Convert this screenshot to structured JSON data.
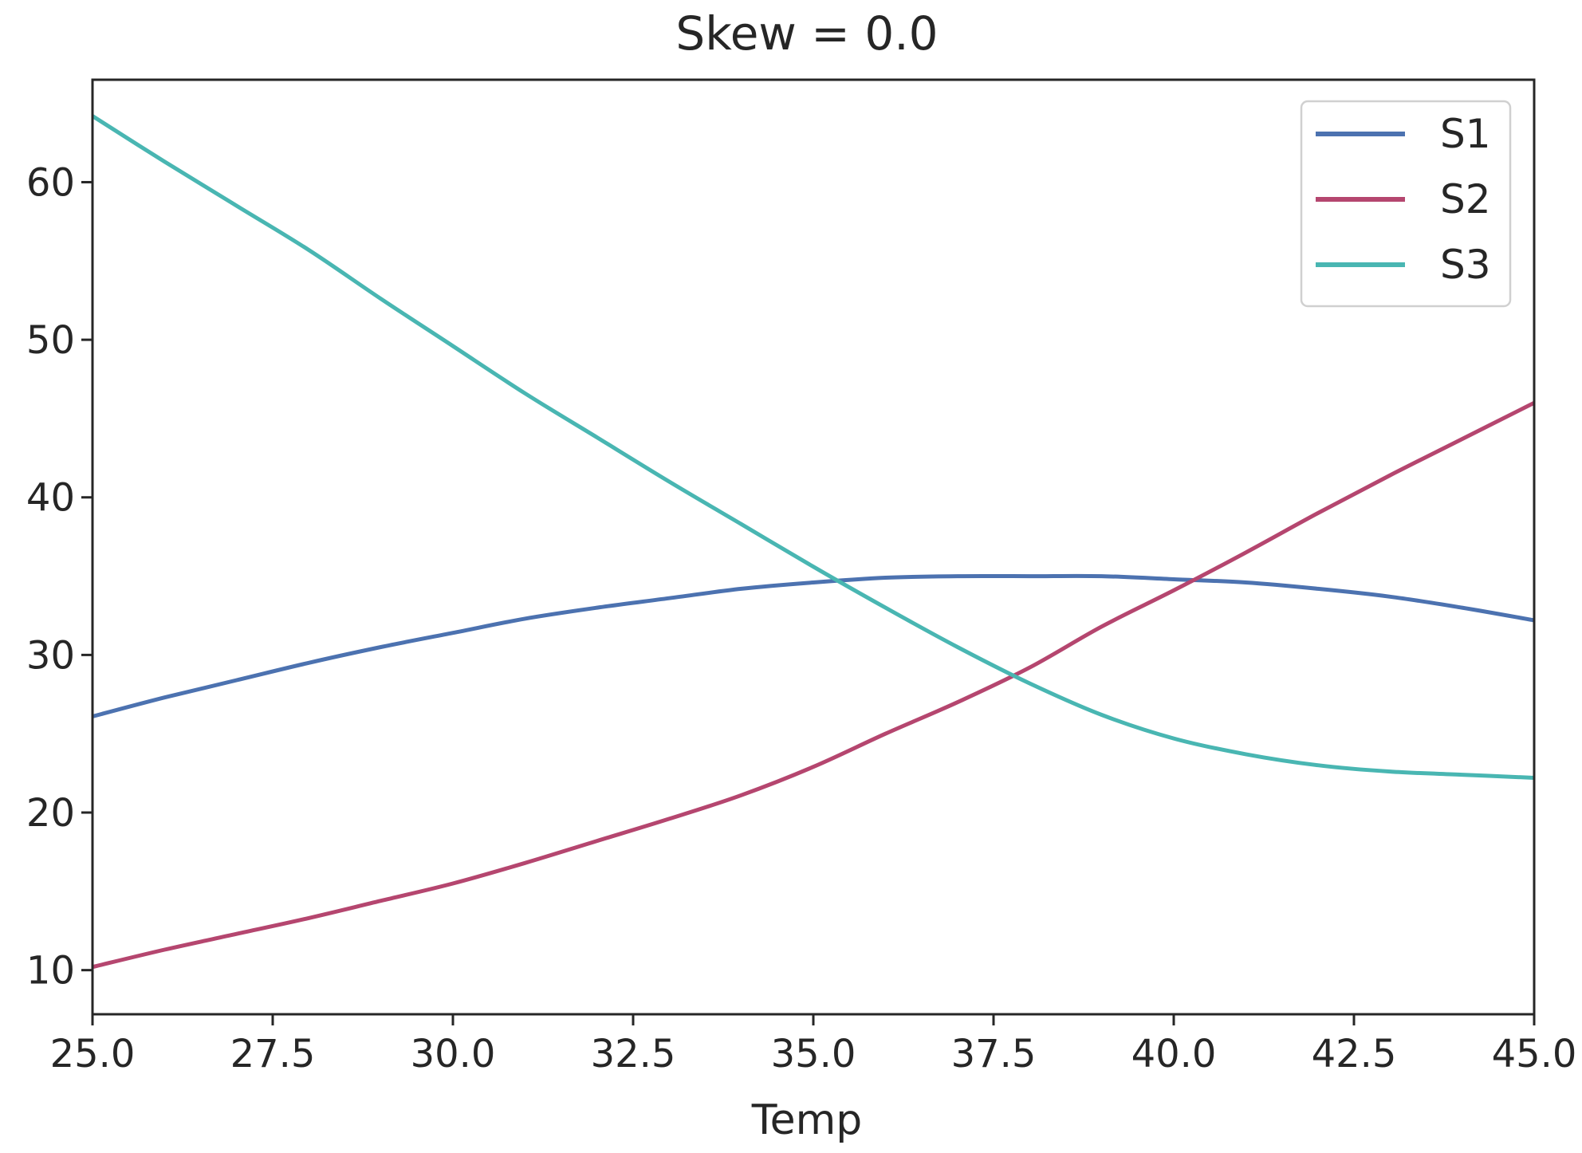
{
  "chart_data": {
    "type": "line",
    "title": "Skew = 0.0",
    "xlabel": "Temp",
    "ylabel": "",
    "xlim": [
      25.0,
      45.0
    ],
    "ylim": [
      7.2,
      66.5
    ],
    "grid": false,
    "legend_position": "top-right",
    "x_ticks": [
      "25.0",
      "27.5",
      "30.0",
      "32.5",
      "35.0",
      "37.5",
      "40.0",
      "42.5",
      "45.0"
    ],
    "y_ticks": [
      "10",
      "20",
      "30",
      "40",
      "50",
      "60"
    ],
    "x": [
      25.0,
      26.0,
      27.0,
      28.0,
      29.0,
      30.0,
      31.0,
      32.0,
      33.0,
      34.0,
      35.0,
      36.0,
      37.0,
      38.0,
      39.0,
      40.0,
      41.0,
      42.0,
      43.0,
      44.0,
      45.0
    ],
    "series": [
      {
        "name": "S1",
        "color": "#4c72b0",
        "values": [
          26.1,
          27.3,
          28.4,
          29.5,
          30.5,
          31.4,
          32.3,
          33.0,
          33.6,
          34.2,
          34.6,
          34.9,
          35.0,
          35.0,
          35.0,
          34.8,
          34.6,
          34.2,
          33.7,
          33.0,
          32.2
        ]
      },
      {
        "name": "S2",
        "color": "#b5466f",
        "values": [
          10.2,
          11.3,
          12.3,
          13.3,
          14.4,
          15.5,
          16.8,
          18.2,
          19.6,
          21.1,
          22.9,
          25.0,
          27.0,
          29.2,
          31.8,
          34.1,
          36.5,
          39.0,
          41.4,
          43.7,
          46.0
        ]
      },
      {
        "name": "S3",
        "color": "#49b6b2",
        "values": [
          64.2,
          61.3,
          58.5,
          55.7,
          52.6,
          49.6,
          46.6,
          43.8,
          41.0,
          38.3,
          35.6,
          33.0,
          30.5,
          28.2,
          26.2,
          24.7,
          23.7,
          23.0,
          22.6,
          22.4,
          22.2
        ]
      }
    ]
  }
}
